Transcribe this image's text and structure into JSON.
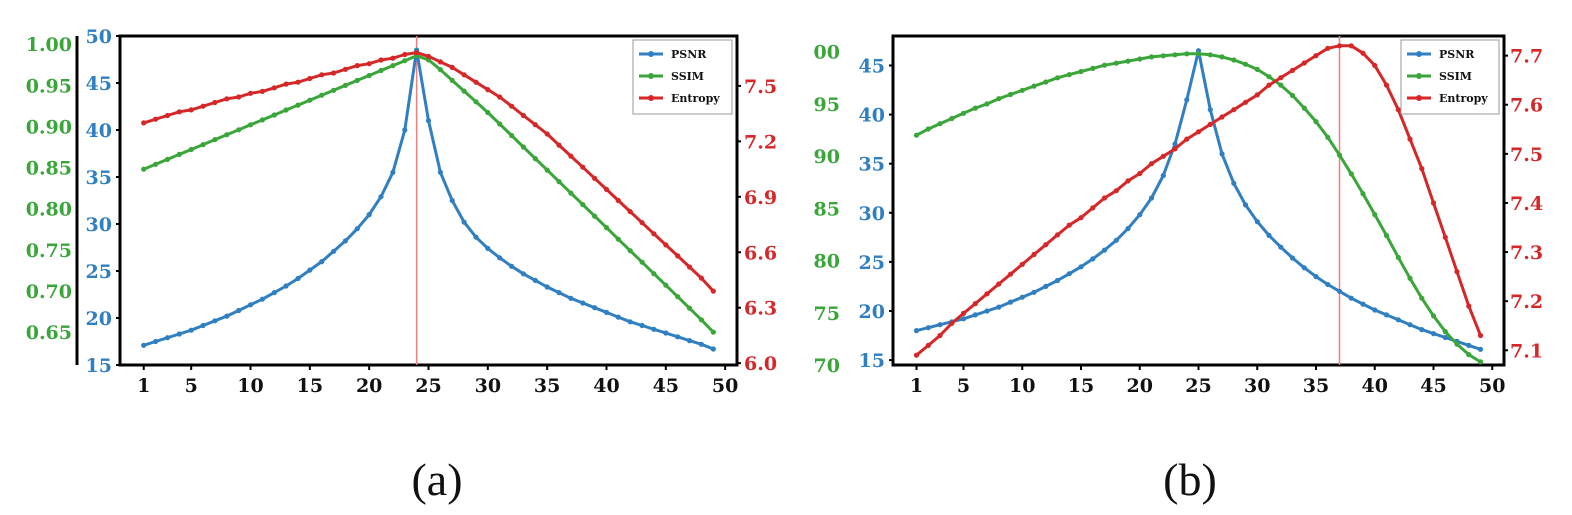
{
  "captions": [
    "(a)",
    "(b)"
  ],
  "colors": {
    "psnr": "#2f7fc1",
    "ssim": "#3aa63a",
    "entropy": "#d62728",
    "vline": "#f08080"
  },
  "chart_data": [
    {
      "type": "line",
      "panel": "(a)",
      "legend": [
        "PSNR",
        "SSIM",
        "Entropy"
      ],
      "legend_position": "top-right",
      "grid": false,
      "x": [
        1,
        2,
        3,
        4,
        5,
        6,
        7,
        8,
        9,
        10,
        11,
        12,
        13,
        14,
        15,
        16,
        17,
        18,
        19,
        20,
        21,
        22,
        23,
        24,
        25,
        26,
        27,
        28,
        29,
        30,
        31,
        32,
        33,
        34,
        35,
        36,
        37,
        38,
        39,
        40,
        41,
        42,
        43,
        44,
        45,
        46,
        47,
        48,
        49
      ],
      "xlim": [
        -1,
        51
      ],
      "xticks": [
        1,
        5,
        10,
        15,
        20,
        25,
        30,
        35,
        40,
        45,
        50
      ],
      "vline_x": 24,
      "axes": {
        "psnr": {
          "lim": [
            15,
            50
          ],
          "ticks": [
            "15",
            "20",
            "25",
            "30",
            "35",
            "40",
            "45",
            "50"
          ]
        },
        "ssim": {
          "lim": [
            0.61,
            1.01
          ],
          "ticks": [
            "0.65",
            "0.70",
            "0.75",
            "0.80",
            "0.85",
            "0.90",
            "0.95",
            "1.00"
          ]
        },
        "entropy": {
          "lim": [
            5.99,
            7.77
          ],
          "ticks": [
            "6.0",
            "6.3",
            "6.6",
            "6.9",
            "7.2",
            "7.5"
          ]
        }
      },
      "series": [
        {
          "name": "PSNR",
          "axis": "psnr",
          "values": [
            17.1,
            17.5,
            17.9,
            18.3,
            18.7,
            19.2,
            19.7,
            20.2,
            20.8,
            21.4,
            22.0,
            22.7,
            23.4,
            24.2,
            25.1,
            26.0,
            27.1,
            28.2,
            29.5,
            31.0,
            32.9,
            35.5,
            40.0,
            48.5,
            41.0,
            35.5,
            32.5,
            30.2,
            28.6,
            27.4,
            26.4,
            25.5,
            24.7,
            24.0,
            23.3,
            22.7,
            22.1,
            21.6,
            21.1,
            20.6,
            20.1,
            19.6,
            19.2,
            18.8,
            18.4,
            18.0,
            17.6,
            17.2,
            16.7
          ]
        },
        {
          "name": "SSIM",
          "axis": "ssim",
          "values": [
            0.848,
            0.854,
            0.86,
            0.866,
            0.872,
            0.878,
            0.884,
            0.89,
            0.896,
            0.902,
            0.908,
            0.914,
            0.92,
            0.926,
            0.932,
            0.938,
            0.944,
            0.95,
            0.956,
            0.962,
            0.968,
            0.974,
            0.98,
            0.986,
            0.981,
            0.969,
            0.956,
            0.943,
            0.93,
            0.917,
            0.903,
            0.889,
            0.875,
            0.861,
            0.847,
            0.833,
            0.819,
            0.805,
            0.791,
            0.777,
            0.763,
            0.749,
            0.735,
            0.721,
            0.707,
            0.693,
            0.679,
            0.665,
            0.65
          ]
        },
        {
          "name": "Entropy",
          "axis": "entropy",
          "values": [
            7.3,
            7.32,
            7.34,
            7.36,
            7.37,
            7.39,
            7.41,
            7.43,
            7.44,
            7.46,
            7.47,
            7.49,
            7.51,
            7.52,
            7.54,
            7.56,
            7.57,
            7.59,
            7.61,
            7.62,
            7.64,
            7.65,
            7.67,
            7.68,
            7.66,
            7.63,
            7.6,
            7.56,
            7.52,
            7.48,
            7.44,
            7.39,
            7.34,
            7.29,
            7.24,
            7.18,
            7.12,
            7.06,
            7.0,
            6.94,
            6.88,
            6.82,
            6.76,
            6.7,
            6.64,
            6.58,
            6.52,
            6.46,
            6.39
          ]
        }
      ]
    },
    {
      "type": "line",
      "panel": "(b)",
      "legend": [
        "PSNR",
        "SSIM",
        "Entropy"
      ],
      "legend_position": "top-right",
      "grid": false,
      "x": [
        1,
        2,
        3,
        4,
        5,
        6,
        7,
        8,
        9,
        10,
        11,
        12,
        13,
        14,
        15,
        16,
        17,
        18,
        19,
        20,
        21,
        22,
        23,
        24,
        25,
        26,
        27,
        28,
        29,
        30,
        31,
        32,
        33,
        34,
        35,
        36,
        37,
        38,
        39,
        40,
        41,
        42,
        43,
        44,
        45,
        46,
        47,
        48,
        49
      ],
      "xlim": [
        -1,
        51
      ],
      "xticks": [
        1,
        5,
        10,
        15,
        20,
        25,
        30,
        35,
        40,
        45,
        50
      ],
      "vline_x": 37,
      "axes": {
        "psnr": {
          "lim": [
            14.5,
            48
          ],
          "ticks": [
            "15",
            "20",
            "25",
            "30",
            "35",
            "40",
            "45"
          ]
        },
        "ssim": {
          "lim": [
            70,
            101.5
          ],
          "ticks": [
            "70",
            "75",
            "80",
            "85",
            "90",
            "95",
            "00"
          ]
        },
        "entropy": {
          "lim": [
            7.07,
            7.74
          ],
          "ticks": [
            "7.1",
            "7.2",
            "7.3",
            "7.4",
            "7.5",
            "7.6",
            "7.7"
          ]
        }
      },
      "series": [
        {
          "name": "PSNR",
          "axis": "psnr",
          "values": [
            18.0,
            18.3,
            18.6,
            18.9,
            19.2,
            19.6,
            20.0,
            20.4,
            20.9,
            21.4,
            21.9,
            22.5,
            23.1,
            23.8,
            24.5,
            25.3,
            26.2,
            27.2,
            28.4,
            29.8,
            31.5,
            33.8,
            37.0,
            41.5,
            46.5,
            40.5,
            36.0,
            33.0,
            30.8,
            29.1,
            27.7,
            26.5,
            25.4,
            24.4,
            23.5,
            22.7,
            22.0,
            21.3,
            20.7,
            20.1,
            19.6,
            19.1,
            18.6,
            18.1,
            17.7,
            17.3,
            16.9,
            16.5,
            16.1
          ]
        },
        {
          "name": "SSIM",
          "axis": "ssim",
          "values": [
            92.0,
            92.6,
            93.1,
            93.6,
            94.1,
            94.6,
            95.0,
            95.5,
            95.9,
            96.3,
            96.7,
            97.1,
            97.5,
            97.8,
            98.1,
            98.4,
            98.7,
            98.9,
            99.1,
            99.3,
            99.5,
            99.6,
            99.7,
            99.8,
            99.8,
            99.7,
            99.5,
            99.2,
            98.8,
            98.3,
            97.6,
            96.8,
            95.8,
            94.6,
            93.3,
            91.8,
            90.1,
            88.3,
            86.4,
            84.4,
            82.4,
            80.3,
            78.3,
            76.4,
            74.7,
            73.2,
            72.0,
            71.0,
            70.3
          ]
        },
        {
          "name": "Entropy",
          "axis": "entropy",
          "values": [
            7.09,
            7.11,
            7.13,
            7.155,
            7.175,
            7.195,
            7.215,
            7.235,
            7.255,
            7.275,
            7.295,
            7.315,
            7.335,
            7.355,
            7.37,
            7.39,
            7.41,
            7.425,
            7.445,
            7.46,
            7.48,
            7.495,
            7.51,
            7.53,
            7.545,
            7.56,
            7.575,
            7.59,
            7.605,
            7.62,
            7.64,
            7.655,
            7.67,
            7.685,
            7.7,
            7.715,
            7.72,
            7.72,
            7.705,
            7.68,
            7.64,
            7.59,
            7.53,
            7.47,
            7.4,
            7.33,
            7.26,
            7.19,
            7.13
          ]
        }
      ]
    }
  ]
}
